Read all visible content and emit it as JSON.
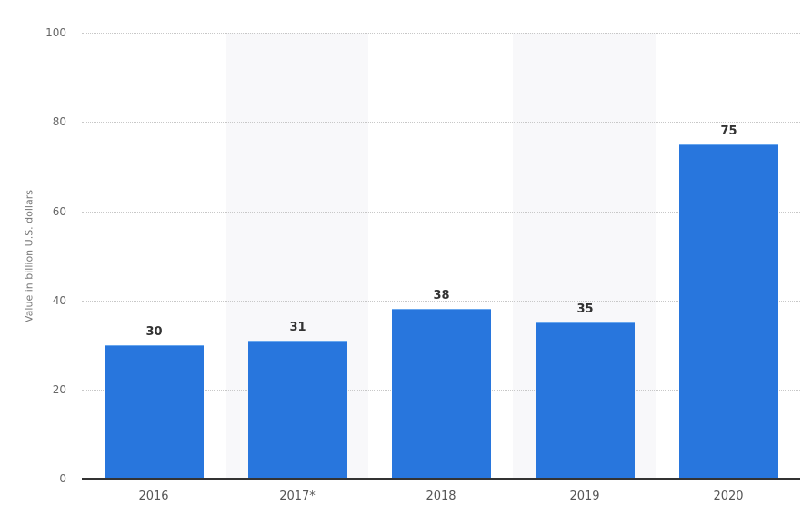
{
  "chart_data": {
    "type": "bar",
    "title": "",
    "xlabel": "",
    "ylabel": "Value in billion U.S. dollars",
    "ylim": [
      0,
      100
    ],
    "yticks": [
      0,
      20,
      40,
      60,
      80,
      100
    ],
    "categories": [
      "2016",
      "2017*",
      "2018",
      "2019",
      "2020"
    ],
    "values": [
      30,
      31,
      38,
      35,
      75
    ],
    "data_labels": [
      "30",
      "31",
      "38",
      "35",
      "75"
    ],
    "grid": true,
    "legend": null,
    "colors": {
      "bar": "#2876dd",
      "band": "#f8f8fa",
      "axis": "#333333"
    }
  },
  "axis": {
    "ylabel": "Value in billion U.S. dollars",
    "yticks": [
      "0",
      "20",
      "40",
      "60",
      "80",
      "100"
    ]
  }
}
